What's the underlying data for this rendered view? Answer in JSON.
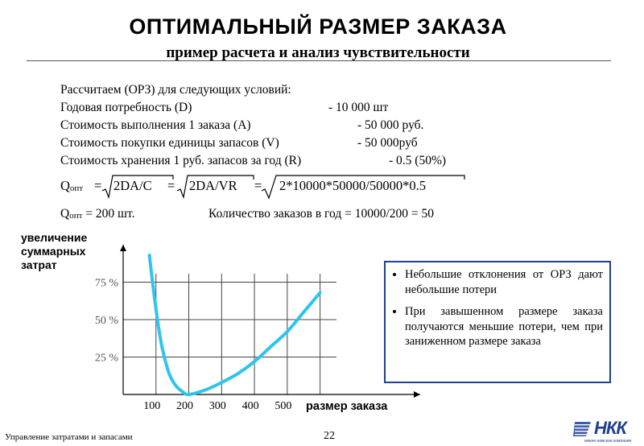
{
  "header": {
    "title": "ОПТИМАЛЬНЫЙ РАЗМЕР ЗАКАЗА",
    "subtitle": "пример расчета и анализ чувствительности"
  },
  "calculation": {
    "intro": "Рассчитаем (ОРЗ) для следующих условий:",
    "lines": [
      {
        "label": "Годовая потребность (D)",
        "value": "- 10 000 шт"
      },
      {
        "label": "Стоимость выполнения 1 заказа (А)",
        "value": "- 50 000 руб."
      },
      {
        "label": "Стоимость покупки единицы запасов (V)",
        "value": "- 50 000руб"
      },
      {
        "label": "Стоимость хранения 1 руб. запасов за год (R)",
        "value": "- 0.5  (50%)"
      }
    ],
    "formula": {
      "q": "Q",
      "q_sub": "опт",
      "eq1": "=",
      "expr1": "2DA/C",
      "eq2": "=",
      "expr2": "2DA/VR",
      "eq3": "=",
      "expr3": "2*10000*50000/50000*0.5"
    },
    "result": {
      "q": "Q",
      "q_sub": "опт",
      "value": "= 200 шт.",
      "orders": "Количество заказов в год = 10000/200 = 50"
    }
  },
  "chart_data": {
    "type": "line",
    "ylabel": "увеличение\nсуммарных\nзатрат",
    "xlabel": "размер заказа",
    "x_ticks": [
      "100",
      "200",
      "300",
      "400",
      "500"
    ],
    "y_ticks": [
      "25 %",
      "50 %",
      "75 %"
    ],
    "xlim": [
      0,
      650
    ],
    "ylim": [
      0,
      100
    ],
    "grid": true,
    "series": [
      {
        "color": "#2ec4f0",
        "points": [
          [
            80,
            93
          ],
          [
            90,
            74
          ],
          [
            100,
            57
          ],
          [
            110,
            42
          ],
          [
            120,
            30
          ],
          [
            140,
            14
          ],
          [
            160,
            6
          ],
          [
            180,
            2
          ],
          [
            200,
            0
          ],
          [
            250,
            3
          ],
          [
            300,
            8
          ],
          [
            350,
            14
          ],
          [
            400,
            22
          ],
          [
            450,
            32
          ],
          [
            500,
            42
          ],
          [
            550,
            55
          ],
          [
            600,
            68
          ]
        ]
      }
    ]
  },
  "info_box": {
    "border_color": "#1f3f94",
    "bullets": [
      "Небольшие отклонения от ОРЗ дают небольшие потери",
      "При завышенном размере заказа получаются меньшие потери, чем при заниженном размере заказа"
    ]
  },
  "footer": {
    "left": "Управление затратами и запасами",
    "page": "22",
    "logo": "НКК",
    "logo_sub": "нижне-камская компания"
  }
}
